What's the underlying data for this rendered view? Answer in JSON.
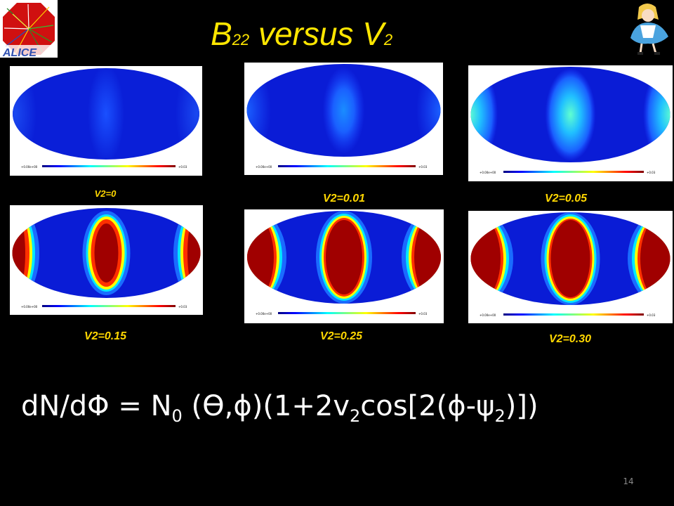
{
  "title": {
    "main_letter": "B",
    "main_sub": "22",
    "versus": " versus V",
    "v_sub": "2"
  },
  "panels": [
    {
      "label": "V2=0",
      "v2": 0,
      "scale_min": "+0.00e+00",
      "scale_max": "+0.03"
    },
    {
      "label": "V2=0.01",
      "v2": 0.01,
      "scale_min": "+0.00e+00",
      "scale_max": "+0.03"
    },
    {
      "label": "V2=0.05",
      "v2": 0.05,
      "scale_min": "+0.00e+00",
      "scale_max": "+0.03"
    },
    {
      "label": "V2=0.15",
      "v2": 0.15,
      "scale_min": "+0.00e+00",
      "scale_max": "+0.03"
    },
    {
      "label": "V2=0.25",
      "v2": 0.25,
      "scale_min": "+0.00e+00",
      "scale_max": "+0.03"
    },
    {
      "label": "V2=0.30",
      "v2": 0.3,
      "scale_min": "+0.00e+00",
      "scale_max": "+0.03"
    }
  ],
  "formula": {
    "p1": "dN/dΦ = N",
    "s1": "0",
    "p2": " (ϴ,ϕ)(1+2v",
    "s2": "2",
    "p3": "cos[2(ϕ-ψ",
    "s3": "2",
    "p4": ")])"
  },
  "page_number": "14",
  "colors": {
    "title": "#ffe600",
    "label": "#ffd700",
    "background": "#000000"
  },
  "icons": {
    "left_logo": "alice-detector-logo",
    "right_logo": "alice-cartoon-icon"
  }
}
